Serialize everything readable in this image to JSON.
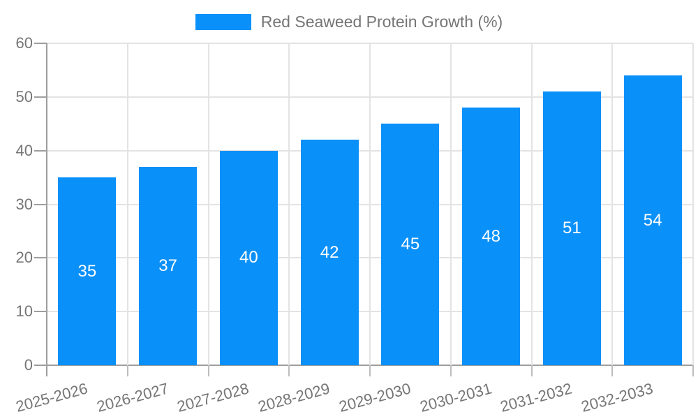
{
  "chart_data": {
    "type": "bar",
    "legend": {
      "label": "Red Seaweed Protein Growth (%)",
      "position": "top"
    },
    "categories": [
      "2025-2026",
      "2026-2027",
      "2027-2028",
      "2028-2029",
      "2029-2030",
      "2030-2031",
      "2031-2032",
      "2032-2033"
    ],
    "values": [
      35,
      37,
      40,
      42,
      45,
      48,
      51,
      54
    ],
    "data_labels": [
      "35",
      "37",
      "40",
      "42",
      "45",
      "48",
      "51",
      "54"
    ],
    "ylim": [
      0,
      60
    ],
    "y_ticks": [
      0,
      10,
      20,
      30,
      40,
      50,
      60
    ],
    "grid": true,
    "x_label_rotation_deg": -15,
    "colors": {
      "bar": "#0a90f9",
      "data_label": "#ffffff",
      "axis": "#9e9e9e",
      "gridline": "#e3e3e3",
      "outer_tick": "#bdbdbd",
      "tick_label": "#757575",
      "background": "#ffffff"
    }
  }
}
